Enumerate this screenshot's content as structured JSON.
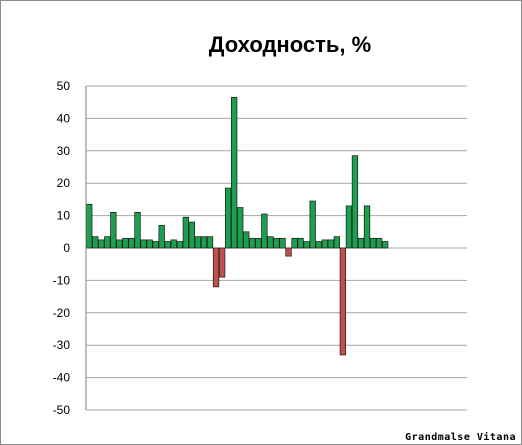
{
  "chart_data": {
    "type": "bar",
    "title": "Доходность, %",
    "xlabel": "",
    "ylabel": "",
    "ylim": [
      -50,
      50
    ],
    "yticks": [
      50,
      40,
      30,
      20,
      10,
      0,
      -10,
      -20,
      -30,
      -40,
      -50
    ],
    "grid": true,
    "legend": "none",
    "positive_color": "#1e9e4f",
    "negative_color": "#c0504d",
    "values": [
      13.5,
      3.5,
      2.5,
      3.5,
      11,
      2.5,
      3,
      3,
      11,
      2.5,
      2.5,
      2,
      7,
      2,
      2.5,
      2,
      9.5,
      8,
      3.5,
      3.5,
      3.5,
      -12,
      -9,
      18.5,
      46.5,
      12.5,
      5,
      3,
      3,
      10.5,
      3.5,
      3,
      3,
      -2.5,
      3,
      3,
      2,
      14.5,
      2,
      2.5,
      2.5,
      3.5,
      -33,
      13,
      28.5,
      3,
      13,
      3,
      3,
      2
    ]
  },
  "watermark": "Grandmalse Vitana"
}
